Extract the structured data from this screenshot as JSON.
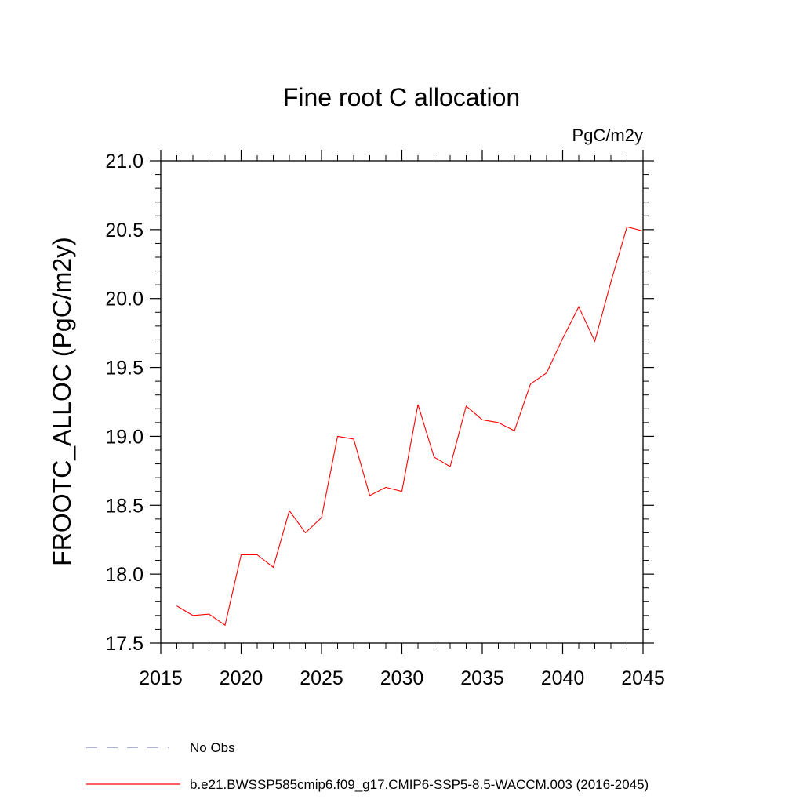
{
  "chart_data": {
    "type": "line",
    "title": "Fine root C allocation",
    "units": "PgC/m2y",
    "xlabel": "",
    "ylabel": "FROOTC_ALLOC  (PgC/m2y)",
    "xlim": [
      2015,
      2045
    ],
    "ylim": [
      17.5,
      21.0
    ],
    "x_ticks": [
      2015,
      2020,
      2025,
      2030,
      2035,
      2040,
      2045
    ],
    "x_tick_labels": [
      "2015",
      "2020",
      "2025",
      "2030",
      "2035",
      "2040",
      "2045"
    ],
    "y_ticks": [
      17.5,
      18.0,
      18.5,
      19.0,
      19.5,
      20.0,
      20.5,
      21.0
    ],
    "y_tick_labels": [
      "17.5",
      "18.0",
      "18.5",
      "19.0",
      "19.5",
      "20.0",
      "20.5",
      "21.0"
    ],
    "grid": false,
    "series": [
      {
        "name": "b.e21.BWSSP585cmip6.f09_g17.CMIP6-SSP5-8.5-WACCM.003 (2016-2045)",
        "color": "#ff0000",
        "x": [
          2016,
          2017,
          2018,
          2019,
          2020,
          2021,
          2022,
          2023,
          2024,
          2025,
          2026,
          2027,
          2028,
          2029,
          2030,
          2031,
          2032,
          2033,
          2034,
          2035,
          2036,
          2037,
          2038,
          2039,
          2040,
          2041,
          2042,
          2043,
          2044,
          2045
        ],
        "values": [
          17.77,
          17.7,
          17.71,
          17.63,
          18.14,
          18.14,
          18.05,
          18.46,
          18.3,
          18.41,
          19.0,
          18.98,
          18.57,
          18.63,
          18.6,
          19.23,
          18.85,
          18.78,
          19.22,
          19.12,
          19.1,
          19.04,
          19.38,
          19.46,
          19.71,
          19.94,
          19.69,
          20.12,
          20.52,
          20.49
        ]
      }
    ],
    "legend": {
      "placement": "bottom-left",
      "entries": [
        {
          "label": "No Obs",
          "color": "#8080c0",
          "style": "dashed"
        },
        {
          "label": "b.e21.BWSSP585cmip6.f09_g17.CMIP6-SSP5-8.5-WACCM.003 (2016-2045)",
          "color": "#ff0000",
          "style": "solid"
        }
      ]
    }
  }
}
